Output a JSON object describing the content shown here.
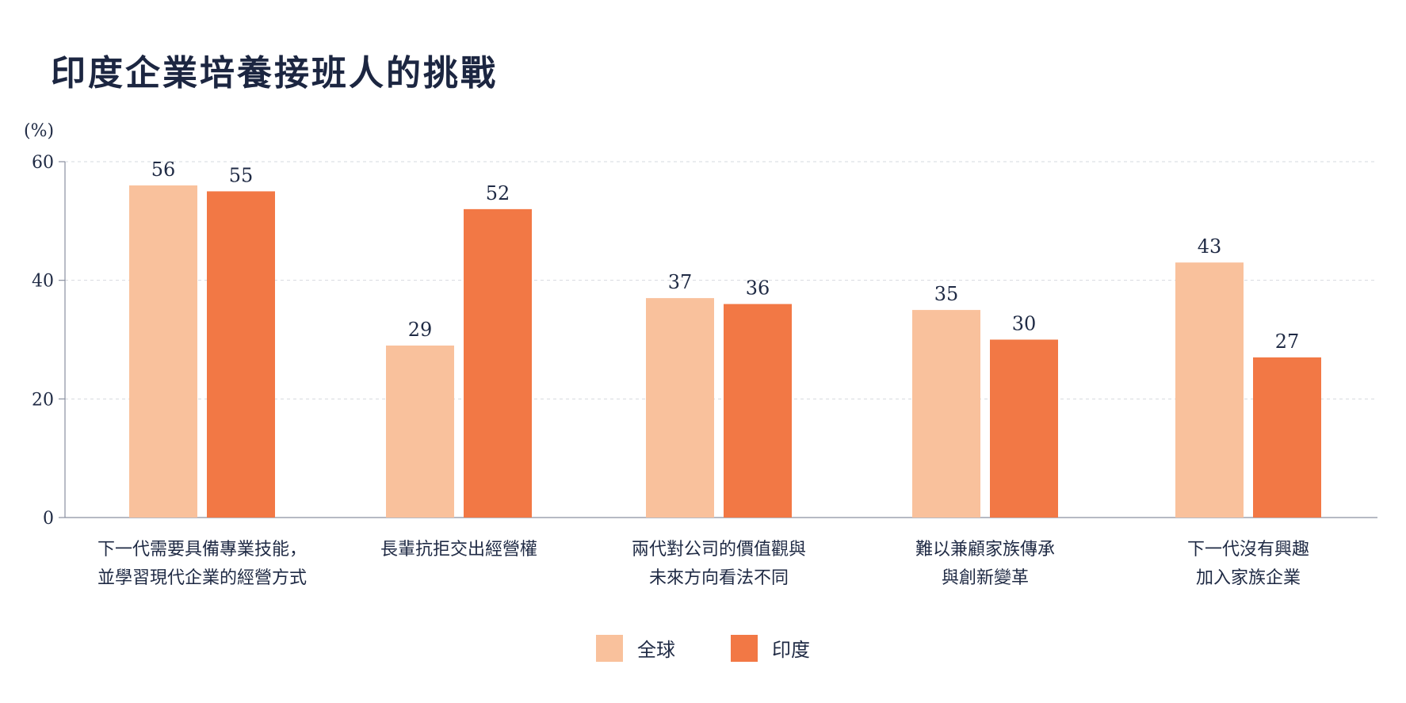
{
  "chart_data": {
    "type": "bar",
    "title": "印度企業培養接班人的挑戰",
    "ylabel": "(%)",
    "xlabel": "",
    "ylim": [
      0,
      60
    ],
    "yticks": [
      0,
      20,
      40,
      60
    ],
    "grid": true,
    "legend_position": "bottom-center",
    "categories": [
      [
        "下一代需要具備專業技能，",
        "並學習現代企業的經營方式"
      ],
      [
        "長輩抗拒交出經營權"
      ],
      [
        "兩代對公司的價值觀與",
        "未來方向看法不同"
      ],
      [
        "難以兼顧家族傳承",
        "與創新變革"
      ],
      [
        "下一代沒有興趣",
        "加入家族企業"
      ]
    ],
    "series": [
      {
        "name": "全球",
        "color": "#f9c19c",
        "values": [
          56,
          29,
          37,
          35,
          43
        ]
      },
      {
        "name": "印度",
        "color": "#f27845",
        "values": [
          55,
          52,
          36,
          30,
          27
        ]
      }
    ]
  }
}
